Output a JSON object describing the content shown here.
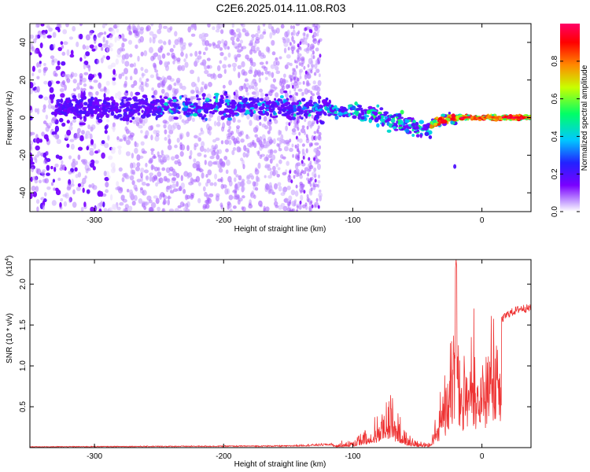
{
  "page_title": "C2E6.2025.014.11.08.R03",
  "chart_data": [
    {
      "type": "heatmap",
      "title": "",
      "xlabel": "Height of straight line (km)",
      "ylabel": "Frequency (Hz)",
      "xlim": [
        -350,
        38
      ],
      "ylim": [
        -50,
        50
      ],
      "x_ticks": [
        -300,
        -200,
        -100,
        0
      ],
      "y_ticks": [
        -40,
        -20,
        0,
        20,
        40
      ],
      "grid": false,
      "colorbar": {
        "label": "Normalized spectral amplitude",
        "range": [
          0,
          1
        ],
        "ticks": [
          0.0,
          0.2,
          0.4,
          0.6,
          0.8
        ],
        "tick_labels": [
          "0.0",
          "0.2",
          "0.4",
          "0.6",
          "0.8"
        ],
        "colors": [
          "#ffffff",
          "#c9a6ff",
          "#7a00ff",
          "#2222ff",
          "#00c8ff",
          "#00ff66",
          "#c8ff00",
          "#ff8800",
          "#ff0000",
          "#ff0066"
        ]
      },
      "ridge_track": [
        {
          "x": -330,
          "y": 5
        },
        {
          "x": -250,
          "y": 5
        },
        {
          "x": -200,
          "y": 6
        },
        {
          "x": -150,
          "y": 5
        },
        {
          "x": -120,
          "y": 4
        },
        {
          "x": -100,
          "y": 3
        },
        {
          "x": -80,
          "y": 1
        },
        {
          "x": -60,
          "y": -3
        },
        {
          "x": -45,
          "y": -7
        },
        {
          "x": -35,
          "y": -2
        },
        {
          "x": -20,
          "y": 0
        },
        {
          "x": 0,
          "y": 0
        },
        {
          "x": 38,
          "y": 0
        }
      ]
    },
    {
      "type": "line",
      "title": "",
      "xlabel": "Height of straight line (km)",
      "ylabel": "SNR (10 * v/v)",
      "y_scale_label": "(x10",
      "y_scale_exponent": "4",
      "y_scale_suffix": ")",
      "xlim": [
        -350,
        38
      ],
      "ylim": [
        0,
        2.3
      ],
      "x_ticks": [
        -300,
        -200,
        -100,
        0
      ],
      "y_ticks": [
        0.5,
        1.0,
        1.5,
        2.0
      ],
      "y_tick_labels": [
        "0.5",
        "1.0",
        "1.5",
        "2.0"
      ],
      "grid": false,
      "series": [
        {
          "color": "#ee3333",
          "envelope": [
            {
              "x": -350,
              "y": 0.01
            },
            {
              "x": -150,
              "y": 0.02
            },
            {
              "x": -115,
              "y": 0.04
            },
            {
              "x": -100,
              "y": 0.1
            },
            {
              "x": -90,
              "y": 0.25
            },
            {
              "x": -80,
              "y": 0.4
            },
            {
              "x": -72,
              "y": 0.7
            },
            {
              "x": -65,
              "y": 0.4
            },
            {
              "x": -55,
              "y": 0.1
            },
            {
              "x": -40,
              "y": 0.05
            },
            {
              "x": -35,
              "y": 0.4
            },
            {
              "x": -30,
              "y": 0.8
            },
            {
              "x": -25,
              "y": 1.2
            },
            {
              "x": -20,
              "y": 2.3
            },
            {
              "x": -15,
              "y": 1.3
            },
            {
              "x": -10,
              "y": 1.3
            },
            {
              "x": 0,
              "y": 1.35
            },
            {
              "x": 10,
              "y": 1.5
            },
            {
              "x": 20,
              "y": 1.65
            },
            {
              "x": 30,
              "y": 1.72
            },
            {
              "x": 38,
              "y": 1.72
            }
          ]
        }
      ]
    }
  ]
}
